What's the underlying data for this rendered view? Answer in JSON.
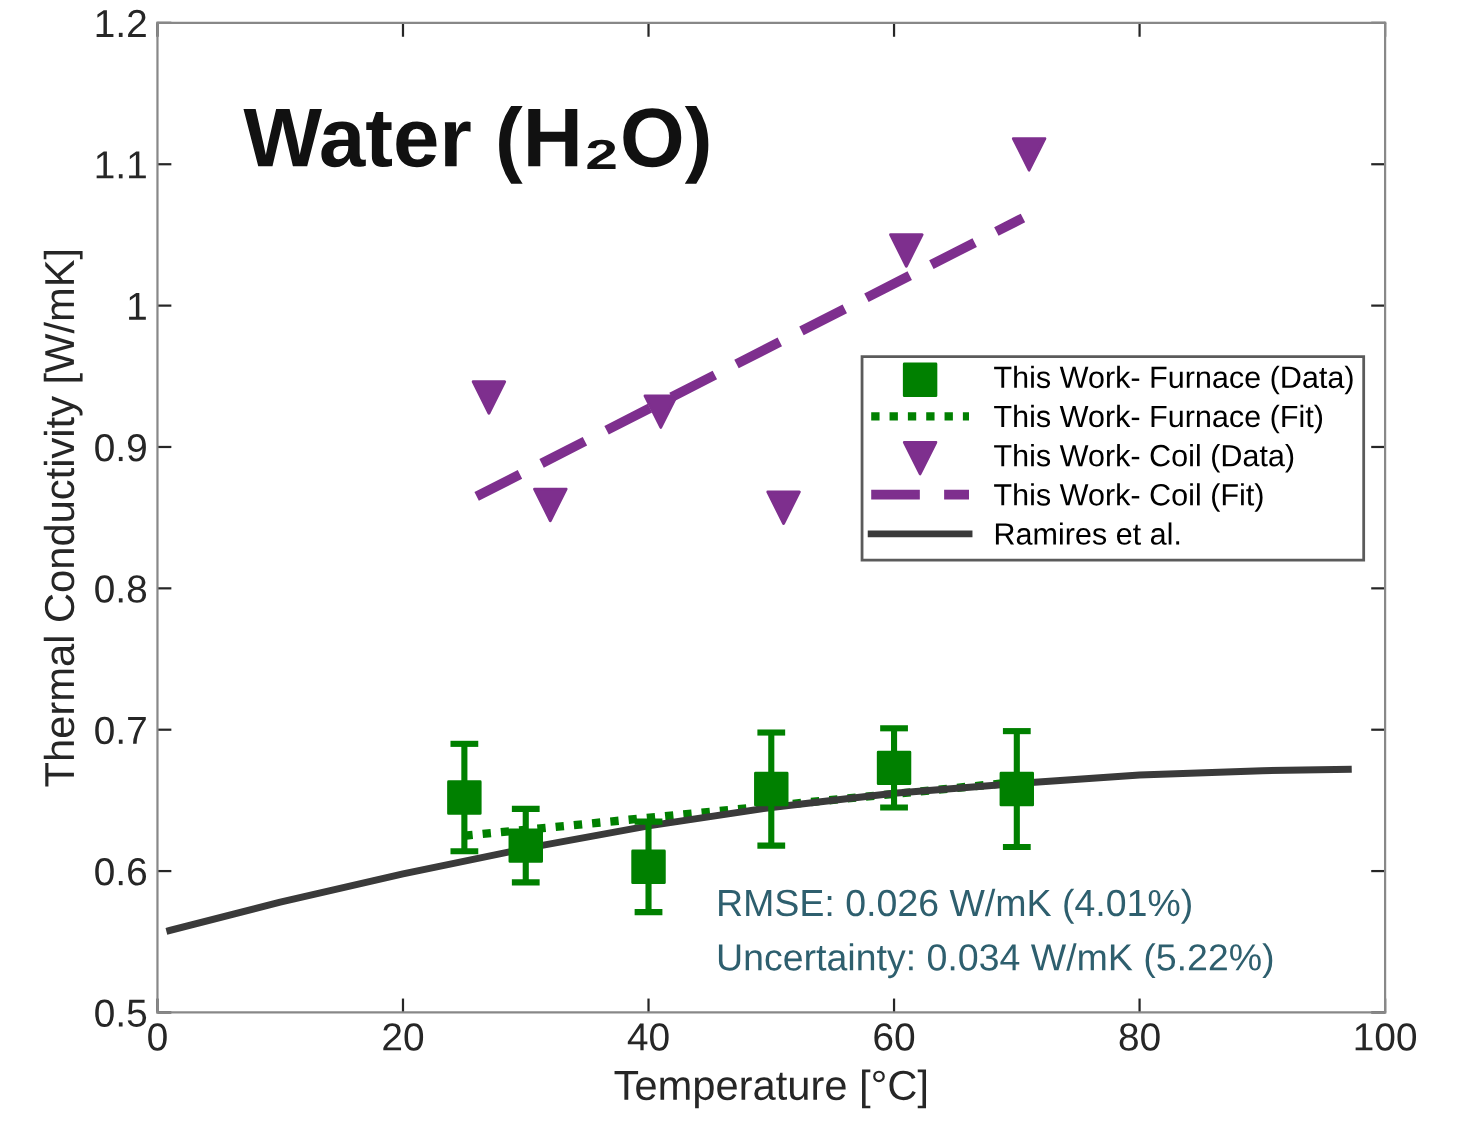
{
  "chart_data": {
    "type": "scatter",
    "title": "Water (H₂O)",
    "xlabel": "Temperature [°C]",
    "ylabel": "Thermal Conductivity [W/mK]",
    "xlim": [
      0,
      100
    ],
    "xticks": [
      0,
      20,
      40,
      60,
      80,
      100
    ],
    "ylim": [
      0.5,
      1.2
    ],
    "yticks": [
      0.5,
      0.6,
      0.7,
      0.8,
      0.9,
      1,
      1.1,
      1.2
    ],
    "grid": false,
    "legend": "right",
    "series": [
      {
        "name": "This Work- Furnace (Data)",
        "marker": "square",
        "color": "#008000",
        "x": [
          25,
          30,
          40,
          50,
          60,
          70
        ],
        "values": [
          0.652,
          0.618,
          0.603,
          0.658,
          0.673,
          0.658
        ],
        "errors": [
          0.038,
          0.026,
          0.032,
          0.04,
          0.028,
          0.041
        ]
      },
      {
        "name": "This Work- Furnace (Fit)",
        "type": "line",
        "line_style": "dotted",
        "color": "#008000",
        "x": [
          25,
          70
        ],
        "values": [
          0.625,
          0.663
        ]
      },
      {
        "name": "This Work- Coil (Data)",
        "marker": "triangle",
        "color": "#7e2f8e",
        "x": [
          27,
          32,
          41,
          51,
          61,
          71
        ],
        "values": [
          0.935,
          0.859,
          0.925,
          0.857,
          1.039,
          1.107
        ]
      },
      {
        "name": "This Work- Coil (Fit)",
        "type": "line",
        "line_style": "dashed",
        "color": "#7e2f8e",
        "x": [
          26,
          70.5
        ],
        "values": [
          0.865,
          1.062
        ]
      },
      {
        "name": "Ramires et al.",
        "type": "line",
        "line_style": "solid",
        "color": "#3a3a3a",
        "x": [
          1,
          10,
          20,
          30,
          40,
          50,
          60,
          70,
          80,
          90,
          97
        ],
        "values": [
          0.558,
          0.578,
          0.598,
          0.616,
          0.632,
          0.645,
          0.655,
          0.662,
          0.668,
          0.671,
          0.672
        ]
      }
    ],
    "annotations": [
      "RMSE: 0.026 W/mK (4.01%)",
      "Uncertainty: 0.034 W/mK (5.22%)"
    ]
  }
}
